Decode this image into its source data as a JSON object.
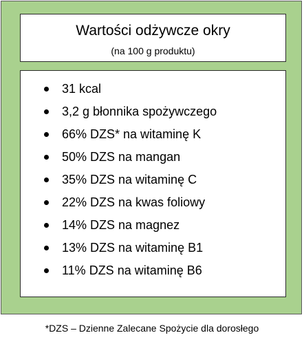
{
  "header": {
    "title": "Wartości odżywcze okry",
    "subtitle": "(na 100 g produktu)"
  },
  "items": [
    {
      "text": "31 kcal"
    },
    {
      "text": "3,2 g błonnika spożywczego"
    },
    {
      "text": "66% DZS* na witaminę K"
    },
    {
      "text": "50% DZS na mangan"
    },
    {
      "text": "35% DZS na witaminę C"
    },
    {
      "text": "22% DZS na kwas foliowy"
    },
    {
      "text": "14% DZS na magnez"
    },
    {
      "text": "13% DZS na witaminę B1"
    },
    {
      "text": "11% DZS na witaminę B6"
    }
  ],
  "footnote": "*DZS – Dzienne Zalecane Spożycie dla dorosłego",
  "colors": {
    "panel_background": "#a9d18e",
    "box_background": "#ffffff",
    "text": "#000000"
  }
}
